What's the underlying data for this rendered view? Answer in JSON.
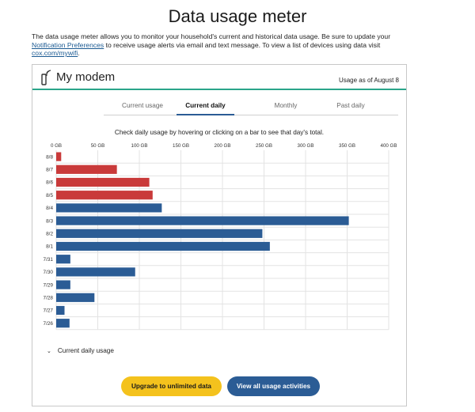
{
  "page": {
    "title": "Data usage meter",
    "intro_text_1": "The data usage meter allows you to monitor your household's current and historical data usage. Be sure to update your ",
    "intro_link_1": "Notification Preferences",
    "intro_text_2": " to receive usage alerts via email and text message. To view a list of devices using data visit ",
    "intro_link_2": "cox.com/mywifi",
    "intro_text_3": "."
  },
  "card": {
    "title": "My modem",
    "as_of": "Usage as of August 8",
    "icon": "modem-icon"
  },
  "tabs": [
    {
      "label": "Current usage",
      "active": false
    },
    {
      "label": "Current daily",
      "active": true
    },
    {
      "label": "Monthly",
      "active": false
    },
    {
      "label": "Past daily",
      "active": false
    }
  ],
  "hint": "Check daily usage by hovering or clicking on a bar to see that day's total.",
  "accordion": {
    "label": "Current daily usage",
    "icon": "chevron-down-icon"
  },
  "buttons": {
    "upgrade": "Upgrade to unlimited data",
    "view_all": "View all usage activities"
  },
  "colors": {
    "current_period": "#c93a3a",
    "past_period": "#2b5c95",
    "accent": "#2aa58a",
    "upgrade_button": "#f4c21d"
  },
  "chart_data": {
    "type": "bar",
    "orientation": "horizontal",
    "categories": [
      "8/8",
      "8/7",
      "8/6",
      "8/5",
      "8/4",
      "8/3",
      "8/2",
      "8/1",
      "7/31",
      "7/30",
      "7/29",
      "7/28",
      "7/27",
      "7/26"
    ],
    "values": [
      6,
      73,
      112,
      116,
      127,
      352,
      248,
      257,
      17,
      95,
      17,
      46,
      10,
      16
    ],
    "highlight": [
      true,
      true,
      true,
      true,
      false,
      false,
      false,
      false,
      false,
      false,
      false,
      false,
      false,
      false
    ],
    "tick_labels": [
      "0 GB",
      "50 GB",
      "100 GB",
      "150 GB",
      "200 GB",
      "250 GB",
      "300 GB",
      "350 GB",
      "400 GB"
    ],
    "xlim": [
      0,
      400
    ],
    "grid": true
  }
}
